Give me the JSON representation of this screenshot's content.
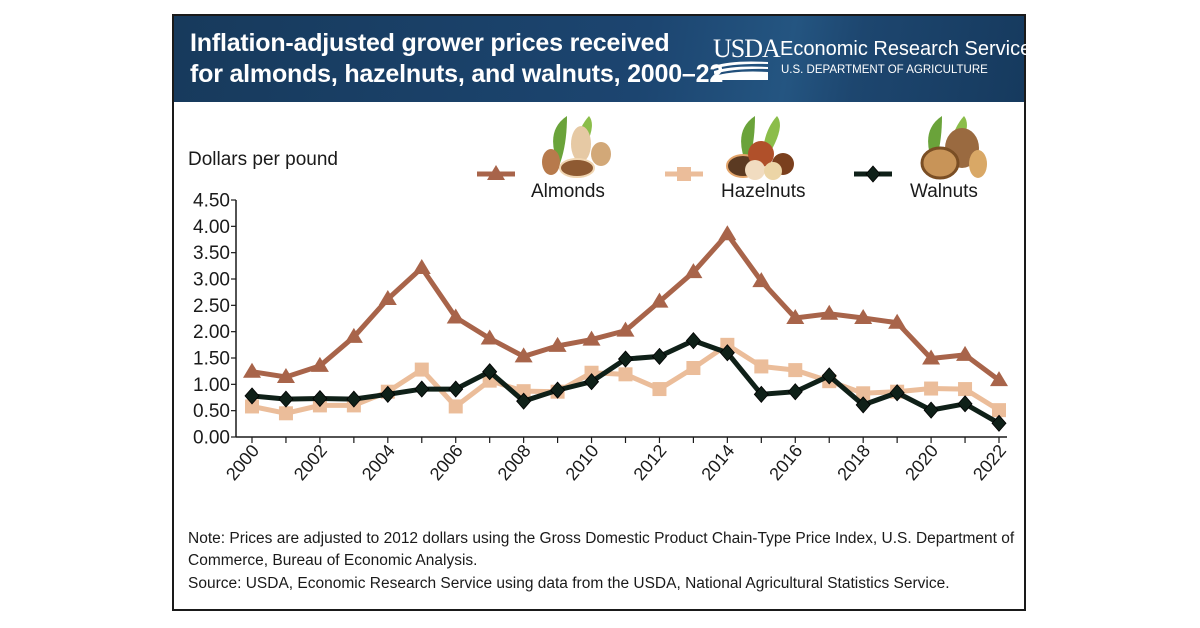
{
  "header": {
    "title_line1": "Inflation-adjusted grower prices received",
    "title_line2": "for almonds, hazelnuts, and walnuts, 2000–22",
    "logo_text": "USDA",
    "agency_name": "Economic Research Service",
    "department": "U.S. DEPARTMENT OF AGRICULTURE"
  },
  "colors": {
    "header_bg": "#1c4570",
    "almonds": "#a8644a",
    "hazelnuts": "#ebbd9a",
    "walnuts": "#0f2018"
  },
  "footer": {
    "note": "Note: Prices are adjusted to 2012 dollars using the Gross Domestic Product Chain-Type Price Index, U.S. Department of Commerce, Bureau of Economic Analysis.",
    "source": "Source: USDA, Economic Research Service using data from the USDA, National Agricultural Statistics Service."
  },
  "chart_data": {
    "type": "line",
    "title": "Inflation-adjusted grower prices received for almonds, hazelnuts, and walnuts, 2000–22",
    "xlabel": "",
    "ylabel": "Dollars per pound",
    "ylim": [
      0,
      4.5
    ],
    "y_ticks": [
      "0.00",
      "0.50",
      "1.00",
      "1.50",
      "2.00",
      "2.50",
      "3.00",
      "3.50",
      "4.00",
      "4.50"
    ],
    "y_tick_values": [
      0,
      0.5,
      1,
      1.5,
      2,
      2.5,
      3,
      3.5,
      4,
      4.5
    ],
    "x": [
      2000,
      2001,
      2002,
      2003,
      2004,
      2005,
      2006,
      2007,
      2008,
      2009,
      2010,
      2011,
      2012,
      2013,
      2014,
      2015,
      2016,
      2017,
      2018,
      2019,
      2020,
      2021,
      2022
    ],
    "x_tick_labels": [
      "2000",
      "2002",
      "2004",
      "2006",
      "2008",
      "2010",
      "2012",
      "2014",
      "2016",
      "2018",
      "2020",
      "2022"
    ],
    "grid": false,
    "legend_position": "top",
    "series": [
      {
        "name": "Almonds",
        "marker": "triangle",
        "color": "#a8644a",
        "values": [
          1.24,
          1.14,
          1.35,
          1.9,
          2.62,
          3.21,
          2.27,
          1.87,
          1.53,
          1.73,
          1.85,
          2.02,
          2.57,
          3.13,
          3.85,
          2.96,
          2.26,
          2.34,
          2.26,
          2.17,
          1.49,
          1.56,
          1.08
        ]
      },
      {
        "name": "Hazelnuts",
        "marker": "square",
        "color": "#ebbd9a",
        "values": [
          0.58,
          0.45,
          0.6,
          0.6,
          0.86,
          1.28,
          0.58,
          1.07,
          0.87,
          0.86,
          1.22,
          1.19,
          0.91,
          1.31,
          1.75,
          1.34,
          1.27,
          1.06,
          0.83,
          0.86,
          0.92,
          0.91,
          0.51
        ]
      },
      {
        "name": "Walnuts",
        "marker": "diamond",
        "color": "#0f2018",
        "values": [
          0.78,
          0.72,
          0.73,
          0.72,
          0.81,
          0.91,
          0.91,
          1.24,
          0.68,
          0.89,
          1.05,
          1.48,
          1.53,
          1.83,
          1.6,
          0.81,
          0.86,
          1.16,
          0.61,
          0.84,
          0.51,
          0.63,
          0.26
        ]
      }
    ]
  }
}
